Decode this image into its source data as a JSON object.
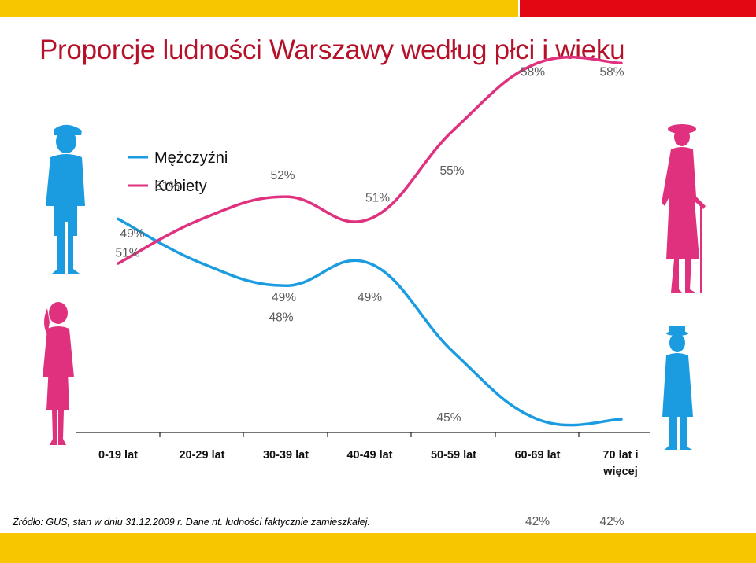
{
  "title": "Proporcje ludności Warszawy według płci i wieku",
  "source": "Źródło: GUS, stan w dniu 31.12.2009 r. Dane nt. ludności faktycznie zamieszkałej.",
  "colors": {
    "title": "#b5122a",
    "yellow_bar": "#f7c600",
    "red_bar": "#e30613",
    "men": "#1b9ce0",
    "women": "#e0317f",
    "label_gray": "#5b5b5b",
    "axis": "#222222"
  },
  "icons": [
    "boy-figure-icon",
    "girl-figure-icon",
    "old-woman-figure-icon",
    "old-man-figure-icon"
  ],
  "chart_data": {
    "type": "line",
    "categories": [
      "0-19 lat",
      "20-29 lat",
      "30-39 lat",
      "40-49 lat",
      "50-59 lat",
      "60-69 lat",
      "70 lat i więcej"
    ],
    "series": [
      {
        "name": "Mężczyźni",
        "values": [
          51,
          49,
          48,
          49,
          45,
          42,
          42
        ],
        "labels": [
          "51%",
          "49%",
          "48%",
          "49%",
          "45%",
          "42%",
          "42%"
        ],
        "color": "#1b9ce0"
      },
      {
        "name": "Kobiety",
        "values": [
          49,
          51,
          52,
          51,
          55,
          58,
          58
        ],
        "labels": [
          "49%",
          "51%",
          "52%",
          "51%",
          "55%",
          "58%",
          "58%"
        ],
        "color": "#e0317f"
      }
    ],
    "ylim": [
      40,
      60
    ],
    "legend": "top-left",
    "grid": false
  }
}
